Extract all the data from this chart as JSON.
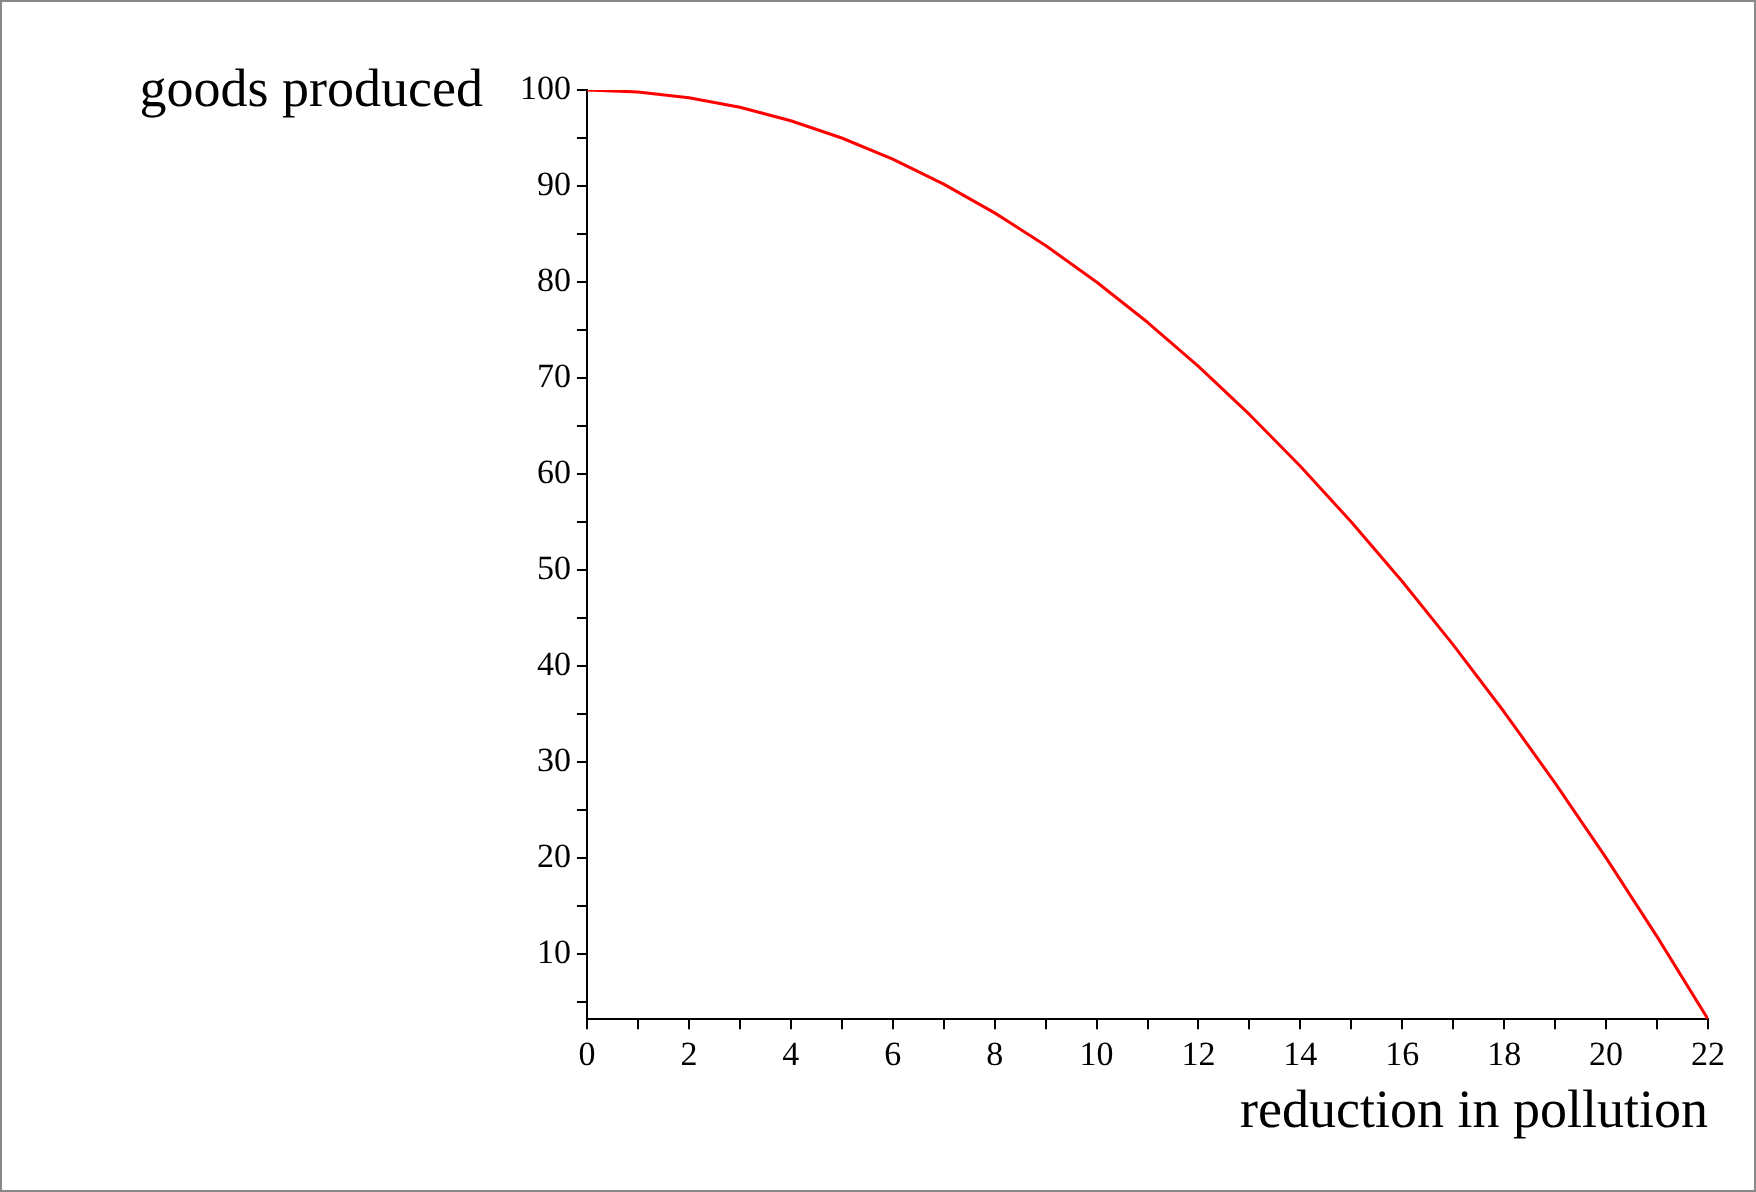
{
  "chart_data": {
    "type": "line",
    "xlabel": "reduction in pollution",
    "ylabel": "goods produced",
    "x": [
      0,
      1,
      2,
      3,
      4,
      5,
      6,
      7,
      8,
      9,
      10,
      11,
      12,
      13,
      14,
      15,
      16,
      17,
      18,
      19,
      20,
      21,
      22
    ],
    "series": [
      {
        "color": "#ff0000",
        "values": [
          100,
          99.8,
          99.2,
          98.2,
          96.8,
          95,
          92.8,
          90.2,
          87.2,
          83.8,
          80,
          75.8,
          71.2,
          66.2,
          60.8,
          55,
          48.8,
          42.2,
          35.2,
          27.8,
          20,
          11.8,
          3.2
        ]
      }
    ],
    "xlim": [
      0,
      22
    ],
    "ylim": [
      3.2,
      100
    ],
    "xticks": [
      0,
      {
        "value": 1,
        "label": null
      },
      2,
      {
        "value": 3,
        "label": null
      },
      4,
      {
        "value": 5,
        "label": null
      },
      6,
      {
        "value": 7,
        "label": null
      },
      8,
      {
        "value": 9,
        "label": null
      },
      10,
      {
        "value": 11,
        "label": null
      },
      12,
      {
        "value": 13,
        "label": null
      },
      14,
      {
        "value": 15,
        "label": null
      },
      16,
      {
        "value": 17,
        "label": null
      },
      18,
      {
        "value": 19,
        "label": null
      },
      20,
      {
        "value": 21,
        "label": null
      },
      22
    ],
    "yticks": [
      {
        "value": 5,
        "label": null
      },
      10,
      {
        "value": 15,
        "label": null
      },
      20,
      {
        "value": 25,
        "label": null
      },
      30,
      {
        "value": 35,
        "label": null
      },
      40,
      {
        "value": 45,
        "label": null
      },
      50,
      {
        "value": 55,
        "label": null
      },
      60,
      {
        "value": 65,
        "label": null
      },
      70,
      {
        "value": 75,
        "label": null
      },
      80,
      {
        "value": 85,
        "label": null
      },
      90,
      {
        "value": 95,
        "label": null
      },
      100
    ],
    "grid": false,
    "legend": false,
    "marker": "none",
    "line_style": "solid"
  }
}
